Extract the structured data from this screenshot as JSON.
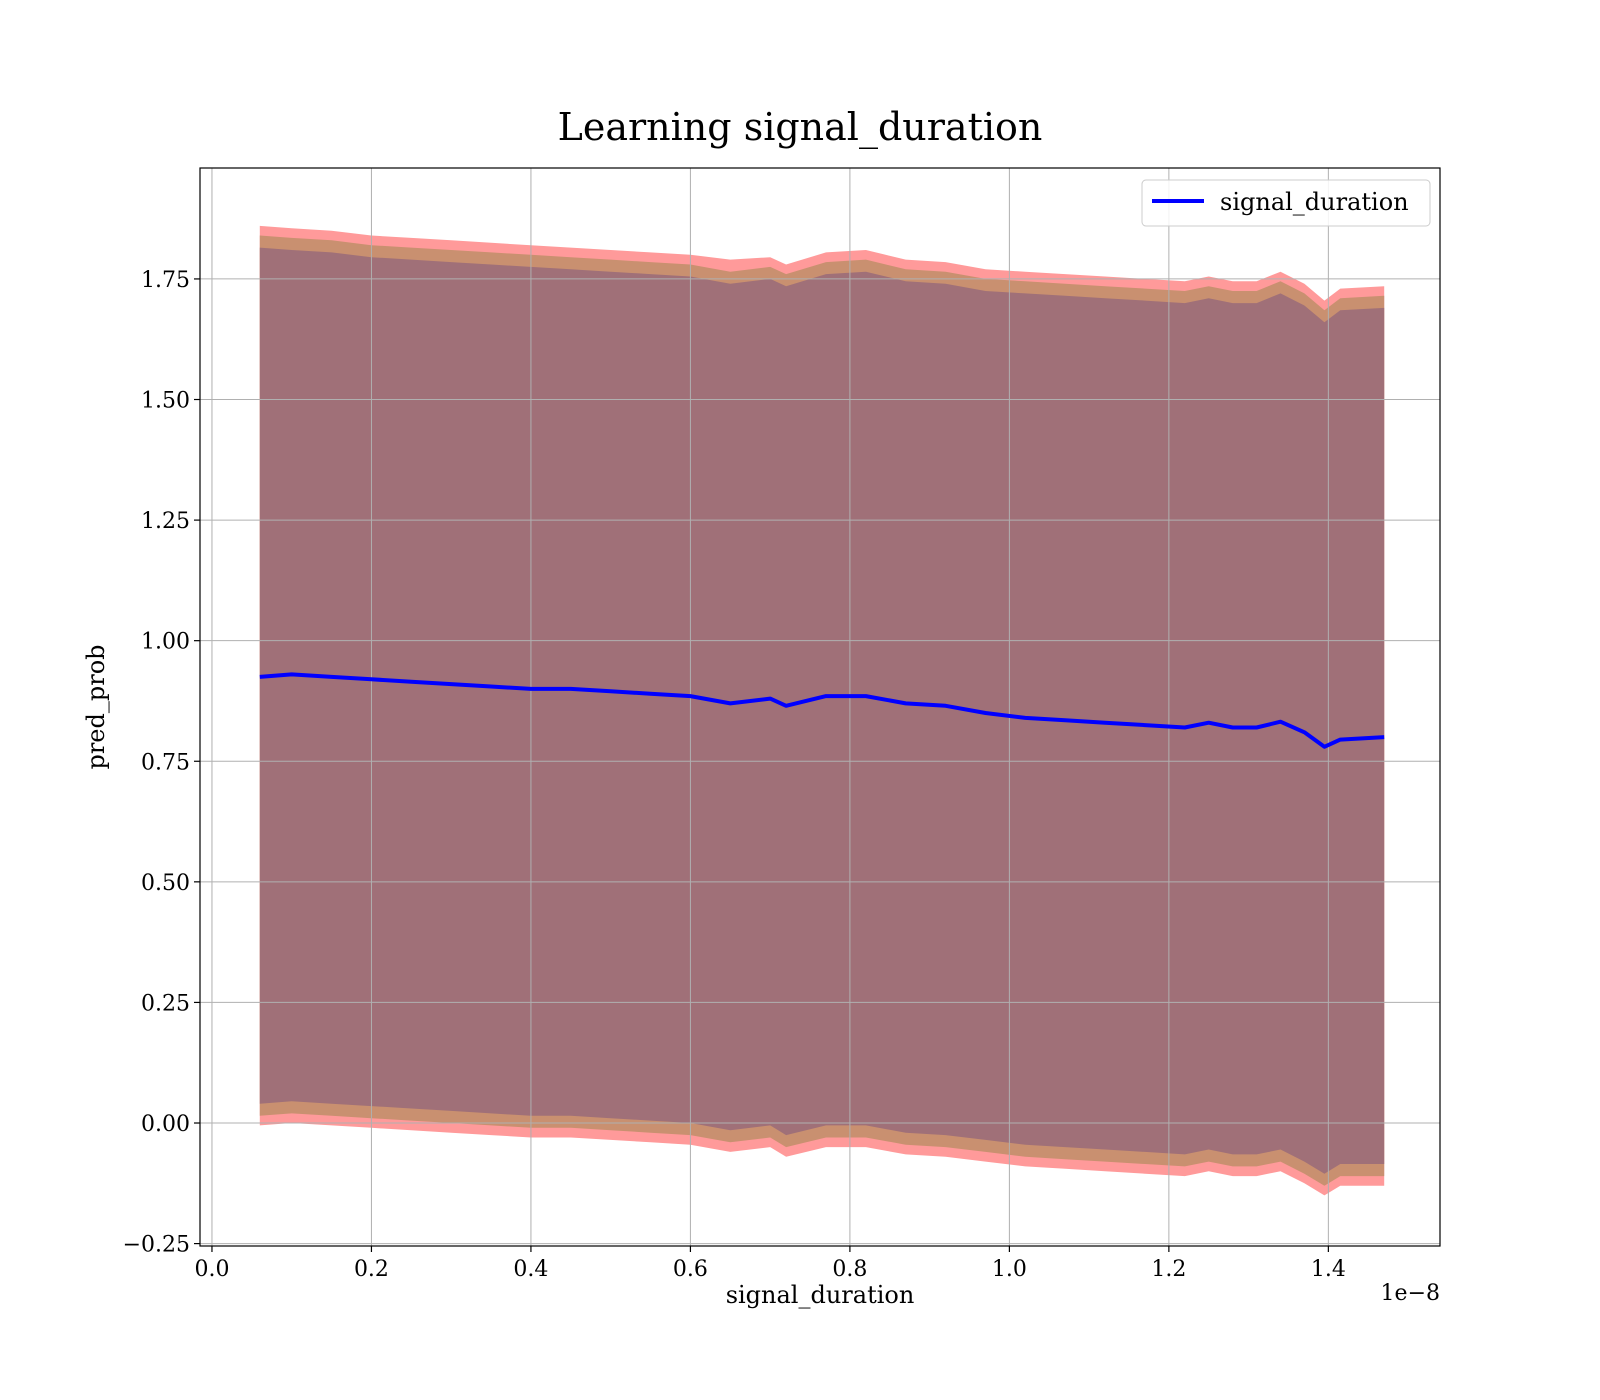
{
  "chart_data": {
    "type": "area",
    "title": "Learning signal_duration",
    "xlabel": "signal_duration",
    "ylabel": "pred_prob",
    "x_offset_label": "1e−8",
    "xlim": [
      -0.015,
      1.54
    ],
    "ylim": [
      -0.255,
      1.98
    ],
    "grid": true,
    "legend_placement": "top-right",
    "x_ticks": [
      0.0,
      0.2,
      0.4,
      0.6,
      0.8,
      1.0,
      1.2,
      1.4
    ],
    "x_tick_labels": [
      "0.0",
      "0.2",
      "0.4",
      "0.6",
      "0.8",
      "1.0",
      "1.2",
      "1.4"
    ],
    "y_ticks": [
      -0.25,
      0.0,
      0.25,
      0.5,
      0.75,
      1.0,
      1.25,
      1.5,
      1.75
    ],
    "y_tick_labels": [
      "−0.25",
      "0.00",
      "0.25",
      "0.50",
      "0.75",
      "1.00",
      "1.25",
      "1.50",
      "1.75"
    ],
    "colors": {
      "line": "#0000ff",
      "outer_band": "#ff9a9a",
      "middle_band": "#c99070",
      "inner_band": "#a07078"
    },
    "x": [
      0.06,
      0.1,
      0.15,
      0.2,
      0.25,
      0.3,
      0.35,
      0.4,
      0.45,
      0.5,
      0.55,
      0.6,
      0.65,
      0.7,
      0.72,
      0.77,
      0.82,
      0.87,
      0.92,
      0.97,
      1.02,
      1.07,
      1.12,
      1.17,
      1.22,
      1.25,
      1.28,
      1.31,
      1.34,
      1.37,
      1.395,
      1.415,
      1.47
    ],
    "series": [
      {
        "name": "signal_duration",
        "type": "line",
        "values": [
          0.925,
          0.93,
          0.925,
          0.92,
          0.915,
          0.91,
          0.905,
          0.9,
          0.9,
          0.895,
          0.89,
          0.885,
          0.87,
          0.88,
          0.865,
          0.885,
          0.885,
          0.87,
          0.865,
          0.85,
          0.84,
          0.835,
          0.83,
          0.825,
          0.82,
          0.83,
          0.82,
          0.82,
          0.832,
          0.81,
          0.78,
          0.795,
          0.8
        ]
      }
    ],
    "bands": [
      {
        "role": "outer",
        "upper": [
          1.86,
          1.855,
          1.85,
          1.84,
          1.835,
          1.83,
          1.825,
          1.82,
          1.815,
          1.81,
          1.805,
          1.8,
          1.79,
          1.795,
          1.78,
          1.805,
          1.81,
          1.79,
          1.785,
          1.77,
          1.765,
          1.76,
          1.755,
          1.75,
          1.745,
          1.755,
          1.745,
          1.745,
          1.765,
          1.74,
          1.705,
          1.73,
          1.735
        ],
        "lower": [
          -0.005,
          0.0,
          -0.005,
          -0.01,
          -0.015,
          -0.02,
          -0.025,
          -0.03,
          -0.03,
          -0.035,
          -0.04,
          -0.045,
          -0.06,
          -0.05,
          -0.07,
          -0.05,
          -0.05,
          -0.065,
          -0.07,
          -0.08,
          -0.09,
          -0.095,
          -0.1,
          -0.105,
          -0.11,
          -0.1,
          -0.11,
          -0.11,
          -0.1,
          -0.125,
          -0.15,
          -0.13,
          -0.13
        ]
      },
      {
        "role": "middle",
        "upper": [
          1.84,
          1.835,
          1.83,
          1.82,
          1.815,
          1.81,
          1.805,
          1.8,
          1.795,
          1.79,
          1.785,
          1.78,
          1.765,
          1.775,
          1.76,
          1.785,
          1.79,
          1.77,
          1.765,
          1.75,
          1.745,
          1.74,
          1.735,
          1.73,
          1.725,
          1.735,
          1.725,
          1.725,
          1.745,
          1.72,
          1.685,
          1.71,
          1.715
        ],
        "lower": [
          0.015,
          0.02,
          0.015,
          0.01,
          0.005,
          0.0,
          -0.005,
          -0.01,
          -0.01,
          -0.015,
          -0.02,
          -0.025,
          -0.04,
          -0.03,
          -0.05,
          -0.03,
          -0.03,
          -0.045,
          -0.05,
          -0.06,
          -0.07,
          -0.075,
          -0.08,
          -0.085,
          -0.09,
          -0.08,
          -0.09,
          -0.09,
          -0.08,
          -0.105,
          -0.13,
          -0.11,
          -0.11
        ]
      },
      {
        "role": "inner",
        "upper": [
          1.815,
          1.81,
          1.805,
          1.795,
          1.79,
          1.785,
          1.78,
          1.775,
          1.77,
          1.765,
          1.76,
          1.755,
          1.74,
          1.75,
          1.735,
          1.76,
          1.765,
          1.745,
          1.74,
          1.725,
          1.72,
          1.715,
          1.71,
          1.705,
          1.7,
          1.71,
          1.7,
          1.7,
          1.72,
          1.695,
          1.66,
          1.685,
          1.69
        ],
        "lower": [
          0.04,
          0.045,
          0.04,
          0.035,
          0.03,
          0.025,
          0.02,
          0.015,
          0.015,
          0.01,
          0.005,
          0.0,
          -0.015,
          -0.005,
          -0.025,
          -0.005,
          -0.005,
          -0.02,
          -0.025,
          -0.035,
          -0.045,
          -0.05,
          -0.055,
          -0.06,
          -0.065,
          -0.055,
          -0.065,
          -0.065,
          -0.055,
          -0.08,
          -0.105,
          -0.085,
          -0.085
        ]
      }
    ]
  }
}
